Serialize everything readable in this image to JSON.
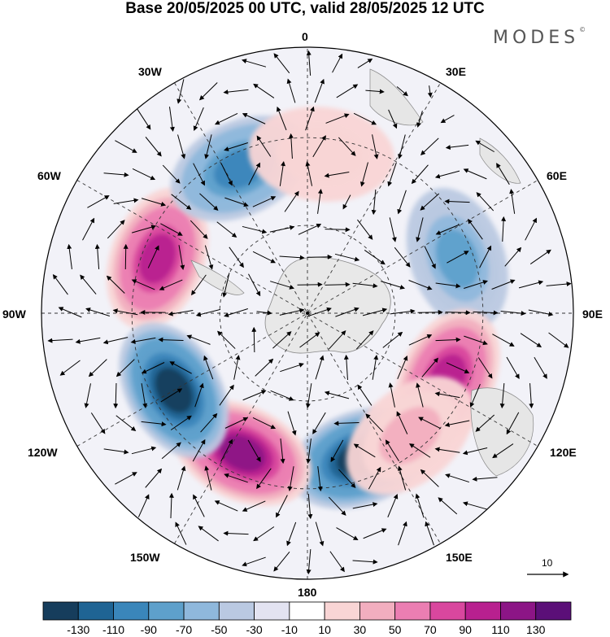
{
  "title": "Base 20/05/2025 00 UTC, valid 28/05/2025 12 UTC",
  "brand": {
    "name": "MODES",
    "mark": "©"
  },
  "map": {
    "projection": "south polar stereographic",
    "longitude_labels": {
      "top": "0",
      "top_left": "30W",
      "top_right": "30E",
      "upper_left": "60W",
      "upper_right": "60E",
      "left": "90W",
      "right": "90E",
      "lower_left": "120W",
      "lower_right": "120E",
      "bottom_left": "150W",
      "bottom_right": "150E",
      "bottom": "180"
    },
    "vector_scale_label": "10",
    "anomaly_centers": [
      {
        "sign": "positive",
        "lon": "70W",
        "level": 110
      },
      {
        "sign": "negative",
        "lon": "25W",
        "level": -90
      },
      {
        "sign": "negative",
        "lon": "70E",
        "level": -70
      },
      {
        "sign": "positive",
        "lon": "115E",
        "level": 110
      },
      {
        "sign": "negative",
        "lon": "160E",
        "level": -130
      },
      {
        "sign": "positive",
        "lon": "155W",
        "level": 130
      },
      {
        "sign": "negative",
        "lon": "120W",
        "level": -130
      },
      {
        "sign": "positive",
        "lon": "5E",
        "level": 30
      },
      {
        "sign": "positive",
        "lon": "140E",
        "level": 50
      }
    ]
  },
  "colorbar": {
    "colors": [
      "#163d5c",
      "#1f6494",
      "#3a86ba",
      "#5ea0cb",
      "#8fb8dc",
      "#bac9e2",
      "#e3e3f1",
      "#ffffff",
      "#f9d5d5",
      "#f2aebf",
      "#eb7eb2",
      "#d9479e",
      "#b8208f",
      "#8c1586",
      "#5b0f78"
    ],
    "tick_labels": [
      "-130",
      "-110",
      "-90",
      "-70",
      "-50",
      "-30",
      "-10",
      "10",
      "30",
      "50",
      "70",
      "90",
      "110",
      "130"
    ]
  }
}
